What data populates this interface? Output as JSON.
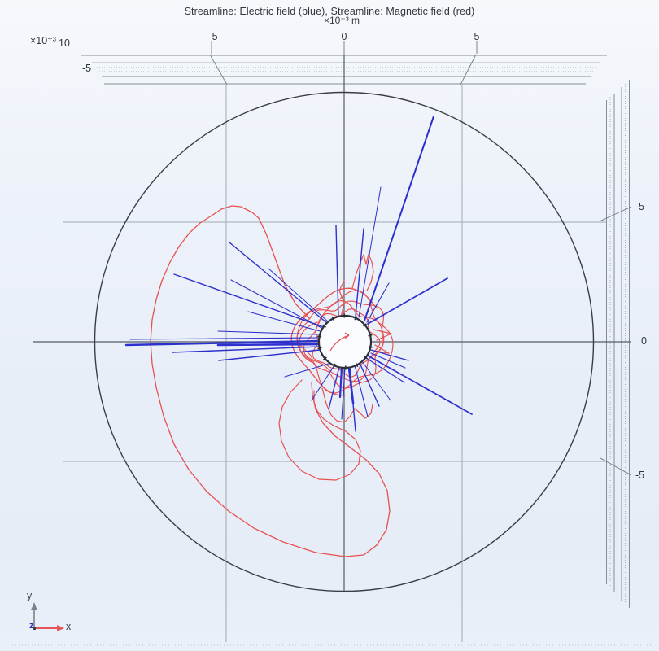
{
  "title": "Streamline: Electric field (blue), Streamline: Magnetic field (red)",
  "axes": {
    "center_unit": "×10⁻³ m",
    "floor": {
      "scale": "×10⁻³",
      "labels": [
        "10",
        "-5"
      ]
    },
    "top": {
      "ticks": [
        "-5",
        "0",
        "5"
      ]
    },
    "right": {
      "ticks": [
        "5",
        "0",
        "-5"
      ]
    }
  },
  "triad": {
    "x": "x",
    "y": "y",
    "z": "z"
  },
  "colors": {
    "electric": "#2c30cc",
    "magnetic": "#e65151",
    "grid_light": "#a2a8b2",
    "grid_dark": "#565b62",
    "ruler_solid": "#878d96",
    "ruler_dotted": "#aab0b8",
    "ruler_tick": "#7d838c",
    "circle_outline": "#3a3e44",
    "inner_circle": "#2c3036",
    "triad_y": "#7c828a",
    "triad_x": "#e4555a"
  },
  "chart_data": {
    "type": "streamline",
    "title": "Streamline: Electric field (blue), Streamline: Magnetic field (red)",
    "view": "3D perspective; xy-plane face-on, floor and side grid planes seen edge-on as compressed rulers",
    "axis_unit": "×10⁻³ m",
    "x_axis": {
      "ticks": [
        -5,
        0,
        5
      ],
      "scale_label": "×10⁻³",
      "range_shown": [
        -7,
        7
      ]
    },
    "y_axis": {
      "ticks": [
        5,
        0,
        -5
      ],
      "range_shown": [
        -7,
        7
      ]
    },
    "floor_axis_visible_ticks": [
      10,
      -5
    ],
    "grid": {
      "x_lines": [
        -5,
        0,
        5
      ],
      "y_lines": [
        -5,
        0,
        5
      ]
    },
    "domain": {
      "outer_boundary": "circle",
      "outer_radius_e-3_m": 10.5,
      "inner_conductor_radius_e-3_m": 1.1,
      "center": [
        0,
        0
      ]
    },
    "series": [
      {
        "name": "Electric field",
        "color": "#2c30cc",
        "style": "straight radial rays emanating from the inner conductor",
        "count_approx": 30,
        "longest_ray_direction_deg": 66,
        "densest_sector": "left (near horizontal)"
      },
      {
        "name": "Magnetic field",
        "color": "#e65151",
        "style": "closed loops encircling the inner conductor",
        "features": [
          "tangled annulus of loops hugging the inner circle",
          "one large irregular loop sweeping through the left and bottom of the domain",
          "secondary loop below the conductor"
        ]
      }
    ],
    "legend_position": "encoded in title",
    "gridlines": true
  }
}
